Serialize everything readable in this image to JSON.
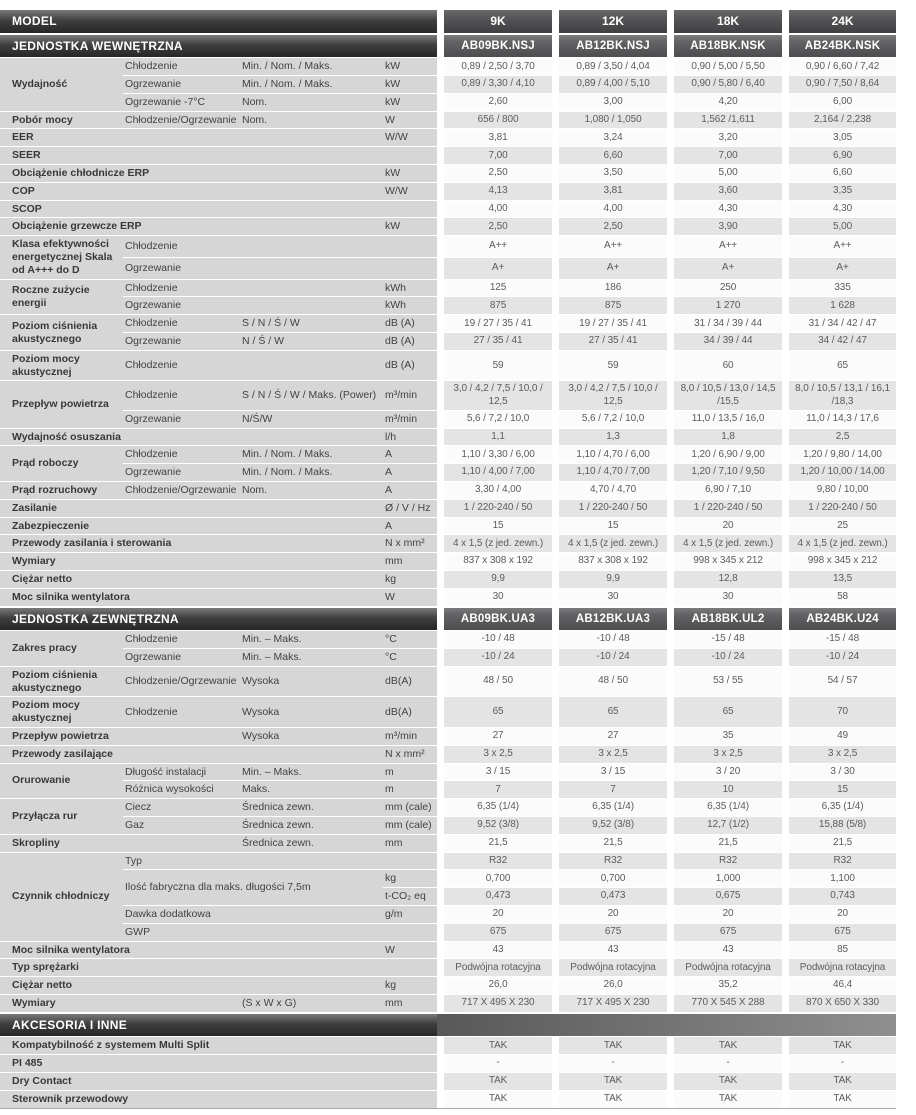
{
  "colors": {
    "section_bar_dark": "#262626",
    "section_bar_light": "#7a7a7a",
    "label_area_bg": "#d6d6d6",
    "row_gray": "#e4e4e4",
    "row_white": "#fbfbfb",
    "header_text": "#ffffff",
    "body_text": "#3f3f3f"
  },
  "header": {
    "model_label": "MODEL",
    "sizes": [
      "9K",
      "12K",
      "18K",
      "24K"
    ]
  },
  "sections": [
    {
      "title": "JEDNOSTKA WEWNĘTRZNA",
      "models": [
        "AB09BK.NSJ",
        "AB12BK.NSJ",
        "AB18BK.NSK",
        "AB24BK.NSK"
      ],
      "rows": [
        {
          "g": "Wydajność",
          "gspan": 3,
          "s": "Chłodzenie",
          "d": "Min. / Nom. / Maks.",
          "u": "kW",
          "v": [
            "0,89 / 2,50 / 3,70",
            "0,89 / 3,50 / 4,04",
            "0,90 / 5,00 / 5,50",
            "0,90 / 6,60 / 7,42"
          ]
        },
        {
          "s": "Ogrzewanie",
          "d": "Min. / Nom. / Maks.",
          "u": "kW",
          "v": [
            "0,89 / 3,30 / 4,10",
            "0,89 / 4,00 / 5,10",
            "0,90 / 5,80 / 6,40",
            "0,90 / 7,50 / 8,64"
          ]
        },
        {
          "s": "Ogrzewanie -7°C",
          "d": "Nom.",
          "u": "kW",
          "v": [
            "2,60",
            "3,00",
            "4,20",
            "6,00"
          ]
        },
        {
          "g": "Pobór mocy",
          "s": "Chłodzenie/Ogrzewanie",
          "d": "Nom.",
          "u": "W",
          "v": [
            "656 / 800",
            "1,080 / 1,050",
            "1,562 /1,611",
            "2,164 / 2,238"
          ]
        },
        {
          "g": "EER",
          "u": "W/W",
          "v": [
            "3,81",
            "3,24",
            "3,20",
            "3,05"
          ]
        },
        {
          "g": "SEER",
          "v": [
            "7,00",
            "6,60",
            "7,00",
            "6,90"
          ]
        },
        {
          "g": "Obciążenie chłodnicze ERP",
          "u": "kW",
          "v": [
            "2,50",
            "3,50",
            "5,00",
            "6,60"
          ]
        },
        {
          "g": "COP",
          "u": "W/W",
          "v": [
            "4,13",
            "3,81",
            "3,60",
            "3,35"
          ]
        },
        {
          "g": "SCOP",
          "v": [
            "4,00",
            "4,00",
            "4,30",
            "4,30"
          ]
        },
        {
          "g": "Obciążenie grzewcze ERP",
          "u": "kW",
          "v": [
            "2,50",
            "2,50",
            "3,90",
            "5,00"
          ]
        },
        {
          "g": "Klasa efektywności energetycznej Skala od A+++ do D",
          "gspan": 2,
          "s": "Chłodzenie",
          "v": [
            "A++",
            "A++",
            "A++",
            "A++"
          ]
        },
        {
          "s": "Ogrzewanie",
          "v": [
            "A+",
            "A+",
            "A+",
            "A+"
          ]
        },
        {
          "g": "Roczne zużycie energii",
          "gspan": 2,
          "s": "Chłodzenie",
          "u": "kWh",
          "v": [
            "125",
            "186",
            "250",
            "335"
          ]
        },
        {
          "s": "Ogrzewanie",
          "u": "kWh",
          "v": [
            "875",
            "875",
            "1 270",
            "1 628"
          ]
        },
        {
          "g": "Poziom ciśnienia akustycznego",
          "gspan": 2,
          "s": "Chłodzenie",
          "d": "S / N / Ś / W",
          "u": "dB (A)",
          "v": [
            "19 / 27 / 35 / 41",
            "19 / 27 / 35 / 41",
            "31 / 34 / 39 / 44",
            "31 / 34 / 42 / 47"
          ]
        },
        {
          "s": "Ogrzewanie",
          "d": "N / Ś / W",
          "u": "dB (A)",
          "v": [
            "27 / 35 / 41",
            "27 / 35 / 41",
            "34 / 39 / 44",
            "34 / 42 / 47"
          ]
        },
        {
          "g": "Poziom mocy akustycznej",
          "s": "Chłodzenie",
          "u": "dB (A)",
          "v": [
            "59",
            "59",
            "60",
            "65"
          ]
        },
        {
          "g": "Przepływ powietrza",
          "gspan": 2,
          "s": "Chłodzenie",
          "d": "S / N / Ś / W / Maks. (Power)",
          "u": "m³/min",
          "v": [
            "3,0 / 4,2 / 7,5 / 10,0 / 12,5",
            "3,0 / 4,2 / 7,5 / 10,0 / 12,5",
            "8,0 / 10,5 / 13,0 / 14,5 /15,5",
            "8,0 / 10,5 / 13,1 / 16,1 /18,3"
          ]
        },
        {
          "s": "Ogrzewanie",
          "d": "N/Ś/W",
          "u": "m³/min",
          "v": [
            "5,6 / 7,2 / 10,0",
            "5,6 / 7,2 / 10,0",
            "11,0 / 13,5 / 16,0",
            "11,0 / 14,3 / 17,6"
          ]
        },
        {
          "g": "Wydajność osuszania",
          "u": "l/h",
          "v": [
            "1,1",
            "1,3",
            "1,8",
            "2,5"
          ]
        },
        {
          "g": "Prąd roboczy",
          "gspan": 2,
          "s": "Chłodzenie",
          "d": "Min. / Nom. / Maks.",
          "u": "A",
          "v": [
            "1,10 / 3,30 / 6,00",
            "1,10 / 4,70 / 6,00",
            "1,20 / 6,90 / 9,00",
            "1,20 / 9,80 / 14,00"
          ]
        },
        {
          "s": "Ogrzewanie",
          "d": "Min. / Nom. / Maks.",
          "u": "A",
          "v": [
            "1,10 / 4,00 / 7,00",
            "1,10 / 4,70 / 7,00",
            "1,20 / 7,10 / 9,50",
            "1,20 / 10,00 / 14,00"
          ]
        },
        {
          "g": "Prąd rozruchowy",
          "s": "Chłodzenie/Ogrzewanie",
          "d": "Nom.",
          "u": "A",
          "v": [
            "3,30 / 4,00",
            "4,70 / 4,70",
            "6,90 / 7,10",
            "9,80 / 10,00"
          ]
        },
        {
          "g": "Zasilanie",
          "u": "Ø / V / Hz",
          "v": [
            "1 / 220-240 / 50",
            "1 / 220-240 / 50",
            "1 / 220-240 / 50",
            "1 / 220-240 / 50"
          ]
        },
        {
          "g": "Zabezpieczenie",
          "u": "A",
          "v": [
            "15",
            "15",
            "20",
            "25"
          ]
        },
        {
          "g": "Przewody zasilania i sterowania",
          "u": "N x mm²",
          "v": [
            "4 x 1,5 (z jed. zewn.)",
            "4 x 1,5 (z jed. zewn.)",
            "4 x 1,5 (z jed. zewn.)",
            "4 x 1,5 (z jed. zewn.)"
          ]
        },
        {
          "g": "Wymiary",
          "u": "mm",
          "v": [
            "837 x 308 x 192",
            "837 x 308 x 192",
            "998 x 345 x 212",
            "998 x 345 x 212"
          ]
        },
        {
          "g": "Ciężar netto",
          "u": "kg",
          "v": [
            "9,9",
            "9,9",
            "12,8",
            "13,5"
          ]
        },
        {
          "g": "Moc silnika wentylatora",
          "u": "W",
          "v": [
            "30",
            "30",
            "30",
            "58"
          ]
        }
      ]
    },
    {
      "title": "JEDNOSTKA ZEWNĘTRZNA",
      "models": [
        "AB09BK.UA3",
        "AB12BK.UA3",
        "AB18BK.UL2",
        "AB24BK.U24"
      ],
      "rows": [
        {
          "g": "Zakres pracy",
          "gspan": 2,
          "s": "Chłodzenie",
          "d": "Min. – Maks.",
          "u": "°C",
          "v": [
            "-10 / 48",
            "-10 / 48",
            "-15 / 48",
            "-15 / 48"
          ]
        },
        {
          "s": "Ogrzewanie",
          "d": "Min. – Maks.",
          "u": "°C",
          "v": [
            "-10 / 24",
            "-10 / 24",
            "-10 / 24",
            "-10 / 24"
          ]
        },
        {
          "g": "Poziom ciśnienia akustycznego",
          "s": "Chłodzenie/Ogrzewanie",
          "d": "Wysoka",
          "u": "dB(A)",
          "v": [
            "48 / 50",
            "48 / 50",
            "53 / 55",
            "54 / 57"
          ]
        },
        {
          "g": "Poziom mocy akustycznej",
          "s": "Chłodzenie",
          "d": "Wysoka",
          "u": "dB(A)",
          "v": [
            "65",
            "65",
            "65",
            "70"
          ]
        },
        {
          "g": "Przepływ powietrza",
          "d": "Wysoka",
          "u": "m³/min",
          "v": [
            "27",
            "27",
            "35",
            "49"
          ]
        },
        {
          "g": "Przewody zasilające",
          "u": "N x mm²",
          "v": [
            "3 x 2,5",
            "3 x 2,5",
            "3 x 2,5",
            "3 x 2,5"
          ]
        },
        {
          "g": "Orurowanie",
          "gspan": 2,
          "s": "Długość instalacji",
          "d": "Min. – Maks.",
          "u": "m",
          "v": [
            "3 / 15",
            "3 / 15",
            "3 / 20",
            "3 / 30"
          ]
        },
        {
          "s": "Różnica wysokości",
          "d": "Maks.",
          "u": "m",
          "v": [
            "7",
            "7",
            "10",
            "15"
          ]
        },
        {
          "g": "Przyłącza rur",
          "gspan": 2,
          "s": "Ciecz",
          "d": "Średnica zewn.",
          "u": "mm (cale)",
          "v": [
            "6,35 (1/4)",
            "6,35 (1/4)",
            "6,35 (1/4)",
            "6,35 (1/4)"
          ]
        },
        {
          "s": "Gaz",
          "d": "Średnica zewn.",
          "u": "mm (cale)",
          "v": [
            "9,52 (3/8)",
            "9,52 (3/8)",
            "12,7 (1/2)",
            "15,88 (5/8)"
          ]
        },
        {
          "g": "Skropliny",
          "d": "Średnica zewn.",
          "u": "mm",
          "v": [
            "21,5",
            "21,5",
            "21,5",
            "21,5"
          ]
        },
        {
          "g": "Czynnik chłodniczy",
          "gspan": 5,
          "s": "Typ",
          "v": [
            "R32",
            "R32",
            "R32",
            "R32"
          ]
        },
        {
          "s": "Ilość fabryczna dla maks. długości 7,5m",
          "swide": true,
          "srows": 2,
          "u": "kg",
          "v": [
            "0,700",
            "0,700",
            "1,000",
            "1,100"
          ]
        },
        {
          "u": "t-CO₂ eq",
          "v": [
            "0,473",
            "0,473",
            "0,675",
            "0,743"
          ]
        },
        {
          "s": "Dawka dodatkowa",
          "u": "g/m",
          "v": [
            "20",
            "20",
            "20",
            "20"
          ]
        },
        {
          "s": "GWP",
          "v": [
            "675",
            "675",
            "675",
            "675"
          ]
        },
        {
          "g": "Moc silnika wentylatora",
          "u": "W",
          "v": [
            "43",
            "43",
            "43",
            "85"
          ]
        },
        {
          "g": "Typ sprężarki",
          "v": [
            "Podwójna rotacyjna",
            "Podwójna rotacyjna",
            "Podwójna rotacyjna",
            "Podwójna rotacyjna"
          ]
        },
        {
          "g": "Ciężar netto",
          "u": "kg",
          "v": [
            "26,0",
            "26,0",
            "35,2",
            "46,4"
          ]
        },
        {
          "g": "Wymiary",
          "d": "(S x W x G)",
          "u": "mm",
          "v": [
            "717 X 495 X 230",
            "717 X 495 X 230",
            "770 X 545 X 288",
            "870 X 650 X 330"
          ]
        }
      ]
    },
    {
      "title": "AKCESORIA I INNE",
      "band": true,
      "rows": [
        {
          "g": "Kompatybilność z systemem Multi Split",
          "v": [
            "TAK",
            "TAK",
            "TAK",
            "TAK"
          ]
        },
        {
          "g": "PI 485",
          "v": [
            "-",
            "-",
            "-",
            "-"
          ]
        },
        {
          "g": "Dry Contact",
          "v": [
            "TAK",
            "TAK",
            "TAK",
            "TAK"
          ]
        },
        {
          "g": "Sterownik przewodowy",
          "v": [
            "TAK",
            "TAK",
            "TAK",
            "TAK"
          ]
        }
      ]
    }
  ]
}
